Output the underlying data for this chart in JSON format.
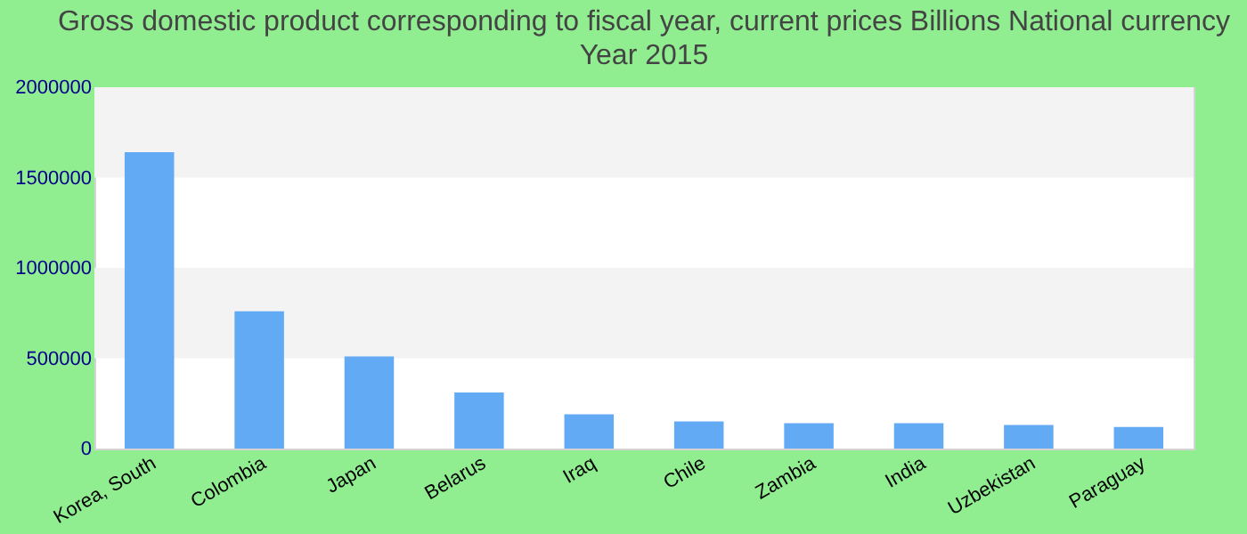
{
  "chart_data": {
    "type": "bar",
    "title": "Gross domestic product corresponding to fiscal year, current prices Billions National currency",
    "subtitle": "Year 2015",
    "categories": [
      "Korea, South",
      "Colombia",
      "Japan",
      "Belarus",
      "Iraq",
      "Chile",
      "Zambia",
      "India",
      "Uzbekistan",
      "Paraguay"
    ],
    "values": [
      1640000,
      760000,
      510000,
      310000,
      190000,
      150000,
      140000,
      140000,
      130000,
      120000
    ],
    "color": "#63aaf5",
    "ylim": [
      0,
      2000000
    ],
    "yticks": [
      0,
      500000,
      1000000,
      1500000,
      2000000
    ]
  }
}
